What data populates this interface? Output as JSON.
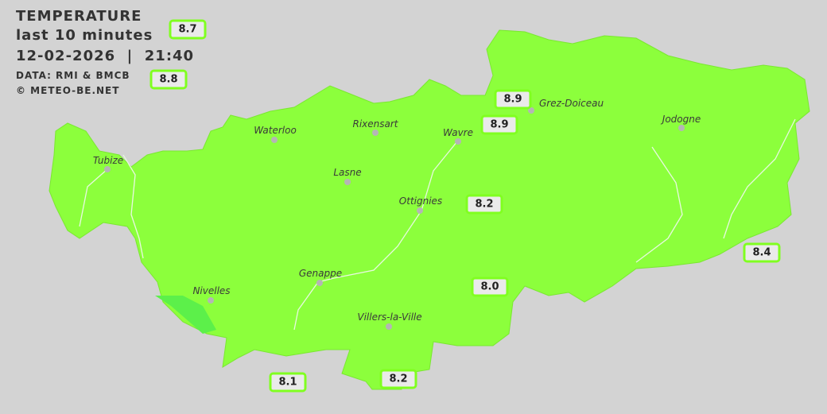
{
  "header": {
    "title": "TEMPERATURE",
    "period": "last 10 minutes",
    "datetime": "12-02-2026  |  21:40",
    "source": "DATA: RMI & BMCB",
    "copyright": "© METEO-BE.NET"
  },
  "colors": {
    "background": "#d3d3d3",
    "region_fill": "#8cff3c",
    "badge_border": "#80ff20",
    "warm_patch": "#5cf04a"
  },
  "cities": [
    {
      "name": "Waterloo"
    },
    {
      "name": "Rixensart"
    },
    {
      "name": "Wavre"
    },
    {
      "name": "Grez-Doiceau"
    },
    {
      "name": "Jodogne"
    },
    {
      "name": "Tubize"
    },
    {
      "name": "Lasne"
    },
    {
      "name": "Ottignies"
    },
    {
      "name": "Genappe"
    },
    {
      "name": "Nivelles"
    },
    {
      "name": "Villers-la-Ville"
    }
  ],
  "stations": [
    {
      "value": "8.7"
    },
    {
      "value": "8.8"
    },
    {
      "value": "8.9"
    },
    {
      "value": "8.9"
    },
    {
      "value": "8.2"
    },
    {
      "value": "8.4"
    },
    {
      "value": "8.0"
    },
    {
      "value": "8.1"
    },
    {
      "value": "8.2"
    }
  ]
}
